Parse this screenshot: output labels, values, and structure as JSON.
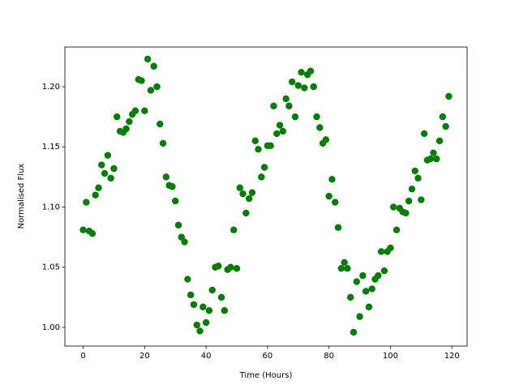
{
  "chart_data": {
    "type": "scatter",
    "xlabel": "Time (Hours)",
    "ylabel": "Normalised Flux",
    "color": "#008000",
    "xlim": [
      -5.95,
      124.95
    ],
    "ylim": [
      0.9845,
      1.233
    ],
    "xticks": [
      0,
      20,
      40,
      60,
      80,
      100,
      120
    ],
    "yticks": [
      {
        "value": 1.0,
        "label": "1.00"
      },
      {
        "value": 1.05,
        "label": "1.05"
      },
      {
        "value": 1.1,
        "label": "1.10"
      },
      {
        "value": 1.15,
        "label": "1.15"
      },
      {
        "value": 1.2,
        "label": "1.20"
      }
    ],
    "x": [
      0,
      1,
      2,
      3,
      4,
      5,
      6,
      7,
      8,
      9,
      10,
      11,
      12,
      13,
      14,
      15,
      16,
      17,
      18,
      19,
      20,
      21,
      22,
      23,
      24,
      25,
      26,
      27,
      28,
      29,
      30,
      31,
      32,
      33,
      34,
      35,
      36,
      37,
      38,
      39,
      40,
      41,
      42,
      43,
      44,
      45,
      46,
      47,
      48,
      49,
      50,
      51,
      52,
      53,
      54,
      55,
      56,
      57,
      58,
      59,
      60,
      61,
      62,
      63,
      64,
      65,
      66,
      67,
      68,
      69,
      70,
      71,
      72,
      73,
      74,
      75,
      76,
      77,
      78,
      79,
      80,
      81,
      82,
      83,
      84,
      85,
      86,
      87,
      88,
      89,
      90,
      91,
      92,
      93,
      94,
      95,
      96,
      97,
      98,
      99,
      100,
      101,
      102,
      103,
      104,
      105,
      106,
      107,
      108,
      109,
      110,
      111,
      112,
      113,
      114,
      115,
      116,
      117,
      118,
      119
    ],
    "values": [
      1.081,
      1.104,
      1.08,
      1.078,
      1.11,
      1.116,
      1.135,
      1.128,
      1.143,
      1.124,
      1.132,
      1.175,
      1.163,
      1.162,
      1.165,
      1.171,
      1.177,
      1.18,
      1.206,
      1.205,
      1.18,
      1.223,
      1.197,
      1.217,
      1.2,
      1.169,
      1.153,
      1.125,
      1.118,
      1.117,
      1.105,
      1.085,
      1.075,
      1.071,
      1.04,
      1.027,
      1.019,
      1.002,
      0.997,
      1.017,
      1.004,
      1.014,
      1.031,
      1.05,
      1.051,
      1.025,
      1.014,
      1.048,
      1.05,
      1.081,
      1.049,
      1.116,
      1.111,
      1.095,
      1.107,
      1.112,
      1.155,
      1.148,
      1.125,
      1.133,
      1.151,
      1.151,
      1.184,
      1.161,
      1.168,
      1.163,
      1.19,
      1.184,
      1.204,
      1.175,
      1.201,
      1.212,
      1.199,
      1.21,
      1.213,
      1.2,
      1.175,
      1.166,
      1.153,
      1.156,
      1.109,
      1.123,
      1.104,
      1.083,
      1.049,
      1.054,
      1.049,
      1.025,
      0.996,
      1.038,
      1.009,
      1.043,
      1.03,
      1.017,
      1.032,
      1.04,
      1.043,
      1.063,
      1.047,
      1.063,
      1.066,
      1.1,
      1.081,
      1.099,
      1.096,
      1.095,
      1.105,
      1.115,
      1.13,
      1.124,
      1.106,
      1.161,
      1.139,
      1.14,
      1.145,
      1.14,
      1.155,
      1.175,
      1.167,
      1.192
    ]
  }
}
